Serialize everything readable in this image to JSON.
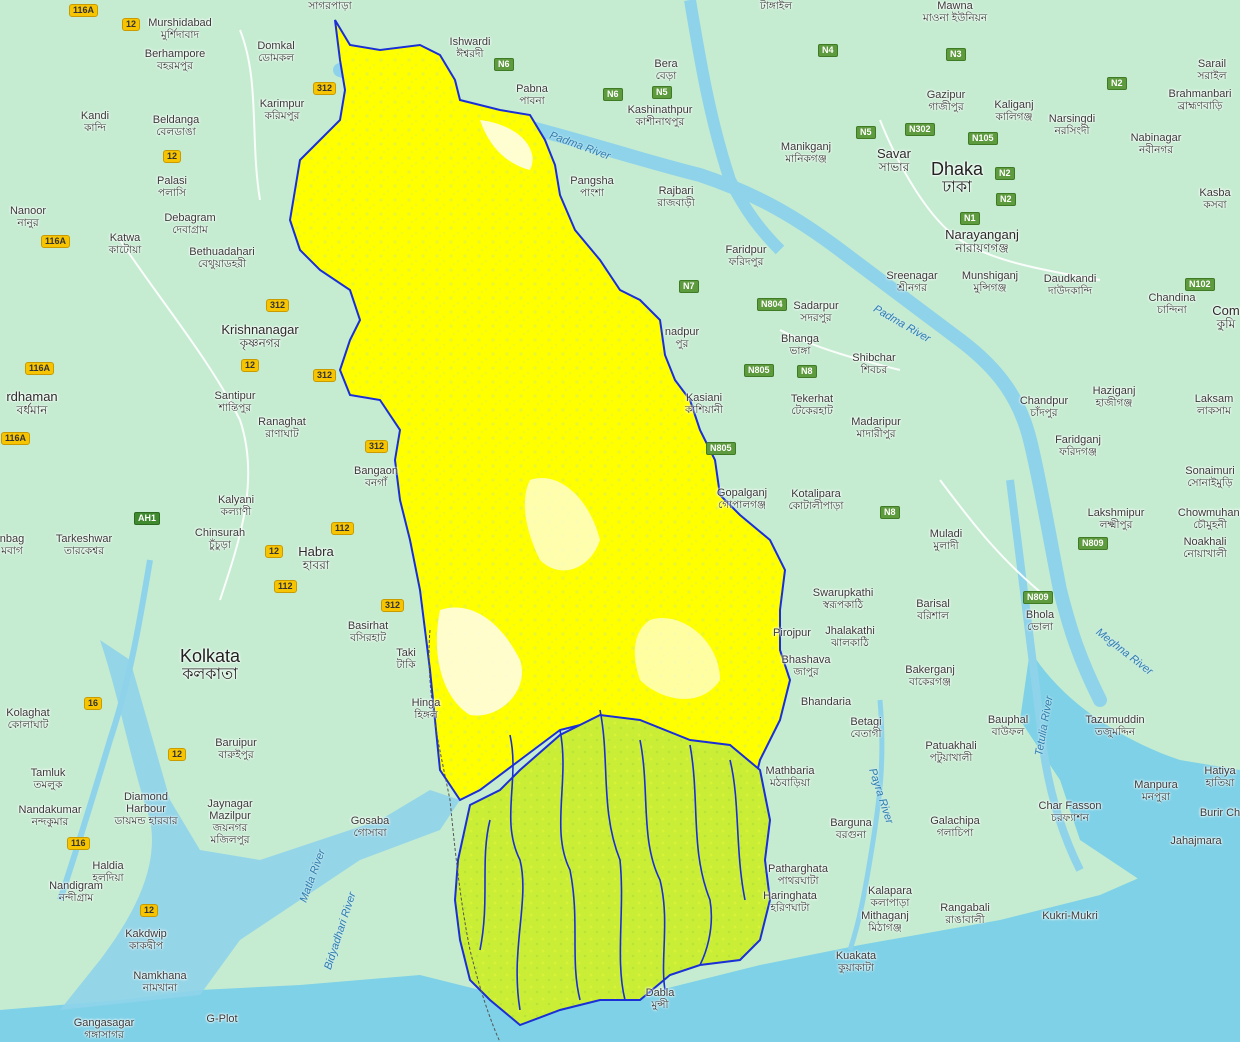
{
  "map": {
    "colors": {
      "land": "#c5ecd1",
      "water": "#7fd1e7",
      "river": "#8fd3ea",
      "overlay_yellow": "#ffff00",
      "overlay_green": "#c6ee3a",
      "boundary": "#1a2fd6",
      "national_road_shield": "#5e9a3e",
      "state_road_shield": "#f6c400"
    },
    "places": [
      {
        "en": "Murshidabad",
        "bn": "মুর্শিদাবাদ"
      },
      {
        "en": "Berhampore",
        "bn": "বহরমপুর"
      },
      {
        "en": "Domkal",
        "bn": "ডোমকল"
      },
      {
        "en": "Kandi",
        "bn": "কান্দি"
      },
      {
        "en": "Beldanga",
        "bn": "বেলডাঙা"
      },
      {
        "en": "Karimpur",
        "bn": "করিমপুর"
      },
      {
        "en": "Palasi",
        "bn": "পলাসি"
      },
      {
        "en": "Nanoor",
        "bn": "নানুর"
      },
      {
        "en": "Katwa",
        "bn": "কাটোয়া"
      },
      {
        "en": "Debagram",
        "bn": "দেবাগ্রাম"
      },
      {
        "en": "Bethuadahari",
        "bn": "বেথুয়াডহরী"
      },
      {
        "en": "Krishnanagar",
        "bn": "কৃষ্ণনগর"
      },
      {
        "en": "rdhaman",
        "bn": "বর্ধমান"
      },
      {
        "en": "Santipur",
        "bn": "শান্তিপুর"
      },
      {
        "en": "Ranaghat",
        "bn": "রাণাঘাট"
      },
      {
        "en": "Bangaon",
        "bn": "বনগাঁ"
      },
      {
        "en": "Kalyani",
        "bn": "কল্যাণী"
      },
      {
        "en": "Chinsurah",
        "bn": "চুঁচুড়া"
      },
      {
        "en": "Tarkeshwar",
        "bn": "তারকেশ্বর"
      },
      {
        "en": "nbag",
        "bn": "মবাগ"
      },
      {
        "en": "Habra",
        "bn": "হাবরা"
      },
      {
        "en": "Basirhat",
        "bn": "বসিরহাট"
      },
      {
        "en": "Taki",
        "bn": "টাকি"
      },
      {
        "en": "Kolkata",
        "bn": "কলকাতা"
      },
      {
        "en": "Hinga",
        "bn": "হিঙ্গল"
      },
      {
        "en": "Kolaghat",
        "bn": "কোলাঘাট"
      },
      {
        "en": "Baruipur",
        "bn": "বারুইপুর"
      },
      {
        "en": "Tamluk",
        "bn": "তমলুক"
      },
      {
        "en": "Nandakumar",
        "bn": "নন্দকুমার"
      },
      {
        "en": "Diamond Harbour",
        "bn": "ডায়মন্ড হারবার"
      },
      {
        "en": "Jaynagar Mazilpur",
        "bn": "জয়নগর মজিলপুর"
      },
      {
        "en": "Gosaba",
        "bn": "গোসাবা"
      },
      {
        "en": "Haldia",
        "bn": "হলদিয়া"
      },
      {
        "en": "Nandigram",
        "bn": "নন্দীগ্রাম"
      },
      {
        "en": "Kakdwip",
        "bn": "কাকদ্বীপ"
      },
      {
        "en": "Namkhana",
        "bn": "নামখানা"
      },
      {
        "en": "Gangasagar",
        "bn": "গঙ্গাসাগর"
      },
      {
        "en": "G-Plot",
        "bn": ""
      },
      {
        "en": "Ishwardi",
        "bn": "ঈশ্বরদী"
      },
      {
        "en": "Pabna",
        "bn": "পাবনা"
      },
      {
        "en": "Bera",
        "bn": "বেড়া"
      },
      {
        "en": "Kashinathpur",
        "bn": "কাশীনাথপুর"
      },
      {
        "en": "Pangsha",
        "bn": "পাংশা"
      },
      {
        "en": "Rajbari",
        "bn": "রাজবাড়ী"
      },
      {
        "en": "Manikganj",
        "bn": "মানিকগঞ্জ"
      },
      {
        "en": "Savar",
        "bn": "সাভার"
      },
      {
        "en": "Dhaka",
        "bn": "ঢাকা"
      },
      {
        "en": "Gazipur",
        "bn": "গাজীপুর"
      },
      {
        "en": "Kaliganj",
        "bn": "কালিগঞ্জ"
      },
      {
        "en": "Narsingdi",
        "bn": "নরসিংদী"
      },
      {
        "en": "Mawna",
        "bn": "মাওনা ইউনিয়ন"
      },
      {
        "en": "Sarail",
        "bn": "সরাইল"
      },
      {
        "en": "Brahmanbari",
        "bn": "ব্রাহ্মণবাড়ি"
      },
      {
        "en": "Nabinagar",
        "bn": "নবীনগর"
      },
      {
        "en": "Kasba",
        "bn": "কসবা"
      },
      {
        "en": "Narayanganj",
        "bn": "নারায়ণগঞ্জ"
      },
      {
        "en": "Faridpur",
        "bn": "ফরিদপুর"
      },
      {
        "en": "Sreenagar",
        "bn": "শ্রীনগর"
      },
      {
        "en": "Munshiganj",
        "bn": "মুন্সিগঞ্জ"
      },
      {
        "en": "Daudkandi",
        "bn": "দাউদকান্দি"
      },
      {
        "en": "Chandina",
        "bn": "চান্দিনা"
      },
      {
        "en": "Com",
        "bn": "কুমি"
      },
      {
        "en": "Sadarpur",
        "bn": "সদরপুর"
      },
      {
        "en": "nadpur",
        "bn": "পুর"
      },
      {
        "en": "Bhanga",
        "bn": "ভাঙ্গা"
      },
      {
        "en": "Shibchar",
        "bn": "শিবচর"
      },
      {
        "en": "Kasiani",
        "bn": "কাশিয়ানী"
      },
      {
        "en": "Tekerhat",
        "bn": "টেকেরহাট"
      },
      {
        "en": "Madaripur",
        "bn": "মাদারীপুর"
      },
      {
        "en": "Chandpur",
        "bn": "চাঁদপুর"
      },
      {
        "en": "Haziganj",
        "bn": "হাজীগঞ্জ"
      },
      {
        "en": "Laksam",
        "bn": "লাকসাম"
      },
      {
        "en": "Faridganj",
        "bn": "ফরিদগঞ্জ"
      },
      {
        "en": "Sonaimuri",
        "bn": "সোনাইমুড়ি"
      },
      {
        "en": "Gopalganj",
        "bn": "গোপালগঞ্জ"
      },
      {
        "en": "Kotalipara",
        "bn": "কোটালীপাড়া"
      },
      {
        "en": "Muladi",
        "bn": "মুলাদী"
      },
      {
        "en": "Lakshmipur",
        "bn": "লক্ষ্মীপুর"
      },
      {
        "en": "Chowmuhani",
        "bn": "চৌমুহনী"
      },
      {
        "en": "Noakhali",
        "bn": "নোয়াখালী"
      },
      {
        "en": "Swarupkathi",
        "bn": "স্বরূপকাঠি"
      },
      {
        "en": "Barisal",
        "bn": "বরিশাল"
      },
      {
        "en": "Bhola",
        "bn": "ভোলা"
      },
      {
        "en": "Jhalakathi",
        "bn": "ঝালকাঠি"
      },
      {
        "en": "Pirojpur",
        "bn": "পিরোজপুর"
      },
      {
        "en": "Bhandaria",
        "bn": ""
      },
      {
        "en": "Bakerganj",
        "bn": "বাকেরগঞ্জ"
      },
      {
        "en": "Betagi",
        "bn": "বেতাগী"
      },
      {
        "en": "Bauphal",
        "bn": "বাউফল"
      },
      {
        "en": "Tazumuddin",
        "bn": "তজুমদ্দিন"
      },
      {
        "en": "Patuakhali",
        "bn": "পটুয়াখালী"
      },
      {
        "en": "Mathbaria",
        "bn": "মঠবাড়িয়া"
      },
      {
        "en": "Manpura",
        "bn": "মনপুরা"
      },
      {
        "en": "Hatiya",
        "bn": "হাতিয়া"
      },
      {
        "en": "Char Fasson",
        "bn": "চরফ্যাশন"
      },
      {
        "en": "Burir Ch",
        "bn": ""
      },
      {
        "en": "Barguna",
        "bn": "বরগুনা"
      },
      {
        "en": "Galachipa",
        "bn": "গলাচিপা"
      },
      {
        "en": "Jahajmara",
        "bn": ""
      },
      {
        "en": "Patharghata",
        "bn": "পাথরঘাটা"
      },
      {
        "en": "Haringhata",
        "bn": "হরিণঘাটা"
      },
      {
        "en": "Kalapara",
        "bn": "কলাপাড়া"
      },
      {
        "en": "Mithaganj",
        "bn": "মিঠাগঞ্জ"
      },
      {
        "en": "Rangabali",
        "bn": "রাঙাবালী"
      },
      {
        "en": "Kukri-Mukri",
        "bn": ""
      },
      {
        "en": "Kuakata",
        "bn": "কুয়াকাটা"
      },
      {
        "en": "Bhashava",
        "bn": "জাপুর"
      },
      {
        "en": "sagarpara",
        "bn": "সাগরপাড়া"
      },
      {
        "en": "Tangail",
        "bn": "টাঙ্গাইল"
      },
      {
        "en": "Dabla",
        "bn": "মুন্সী"
      }
    ],
    "rivers": [
      {
        "name": "Padma River"
      },
      {
        "name": "Padma River"
      },
      {
        "name": "Meghna River"
      },
      {
        "name": "Tetulia River"
      },
      {
        "name": "Payra River"
      },
      {
        "name": "Matla River"
      },
      {
        "name": "Bidyadhari River"
      }
    ],
    "roads": [
      {
        "ref": "116A",
        "kind": "state"
      },
      {
        "ref": "12",
        "kind": "state"
      },
      {
        "ref": "12",
        "kind": "state"
      },
      {
        "ref": "312",
        "kind": "state"
      },
      {
        "ref": "116A",
        "kind": "state"
      },
      {
        "ref": "312",
        "kind": "state"
      },
      {
        "ref": "116A",
        "kind": "state"
      },
      {
        "ref": "12",
        "kind": "state"
      },
      {
        "ref": "312",
        "kind": "state"
      },
      {
        "ref": "116A",
        "kind": "state"
      },
      {
        "ref": "312",
        "kind": "state"
      },
      {
        "ref": "AH1",
        "kind": "ah"
      },
      {
        "ref": "112",
        "kind": "state"
      },
      {
        "ref": "12",
        "kind": "state"
      },
      {
        "ref": "112",
        "kind": "state"
      },
      {
        "ref": "312",
        "kind": "state"
      },
      {
        "ref": "16",
        "kind": "state"
      },
      {
        "ref": "12",
        "kind": "state"
      },
      {
        "ref": "116",
        "kind": "state"
      },
      {
        "ref": "12",
        "kind": "state"
      },
      {
        "ref": "N6",
        "kind": "nat"
      },
      {
        "ref": "N6",
        "kind": "nat"
      },
      {
        "ref": "N5",
        "kind": "nat"
      },
      {
        "ref": "N4",
        "kind": "nat"
      },
      {
        "ref": "N3",
        "kind": "nat"
      },
      {
        "ref": "N2",
        "kind": "nat"
      },
      {
        "ref": "N5",
        "kind": "nat"
      },
      {
        "ref": "N302",
        "kind": "nat"
      },
      {
        "ref": "N105",
        "kind": "nat"
      },
      {
        "ref": "N2",
        "kind": "nat"
      },
      {
        "ref": "N1",
        "kind": "nat"
      },
      {
        "ref": "N7",
        "kind": "nat"
      },
      {
        "ref": "N804",
        "kind": "nat"
      },
      {
        "ref": "N805",
        "kind": "nat"
      },
      {
        "ref": "N8",
        "kind": "nat"
      },
      {
        "ref": "N805",
        "kind": "nat"
      },
      {
        "ref": "N8",
        "kind": "nat"
      },
      {
        "ref": "N102",
        "kind": "nat"
      },
      {
        "ref": "N809",
        "kind": "nat"
      },
      {
        "ref": "N809",
        "kind": "nat"
      },
      {
        "ref": "N2",
        "kind": "nat"
      }
    ]
  }
}
